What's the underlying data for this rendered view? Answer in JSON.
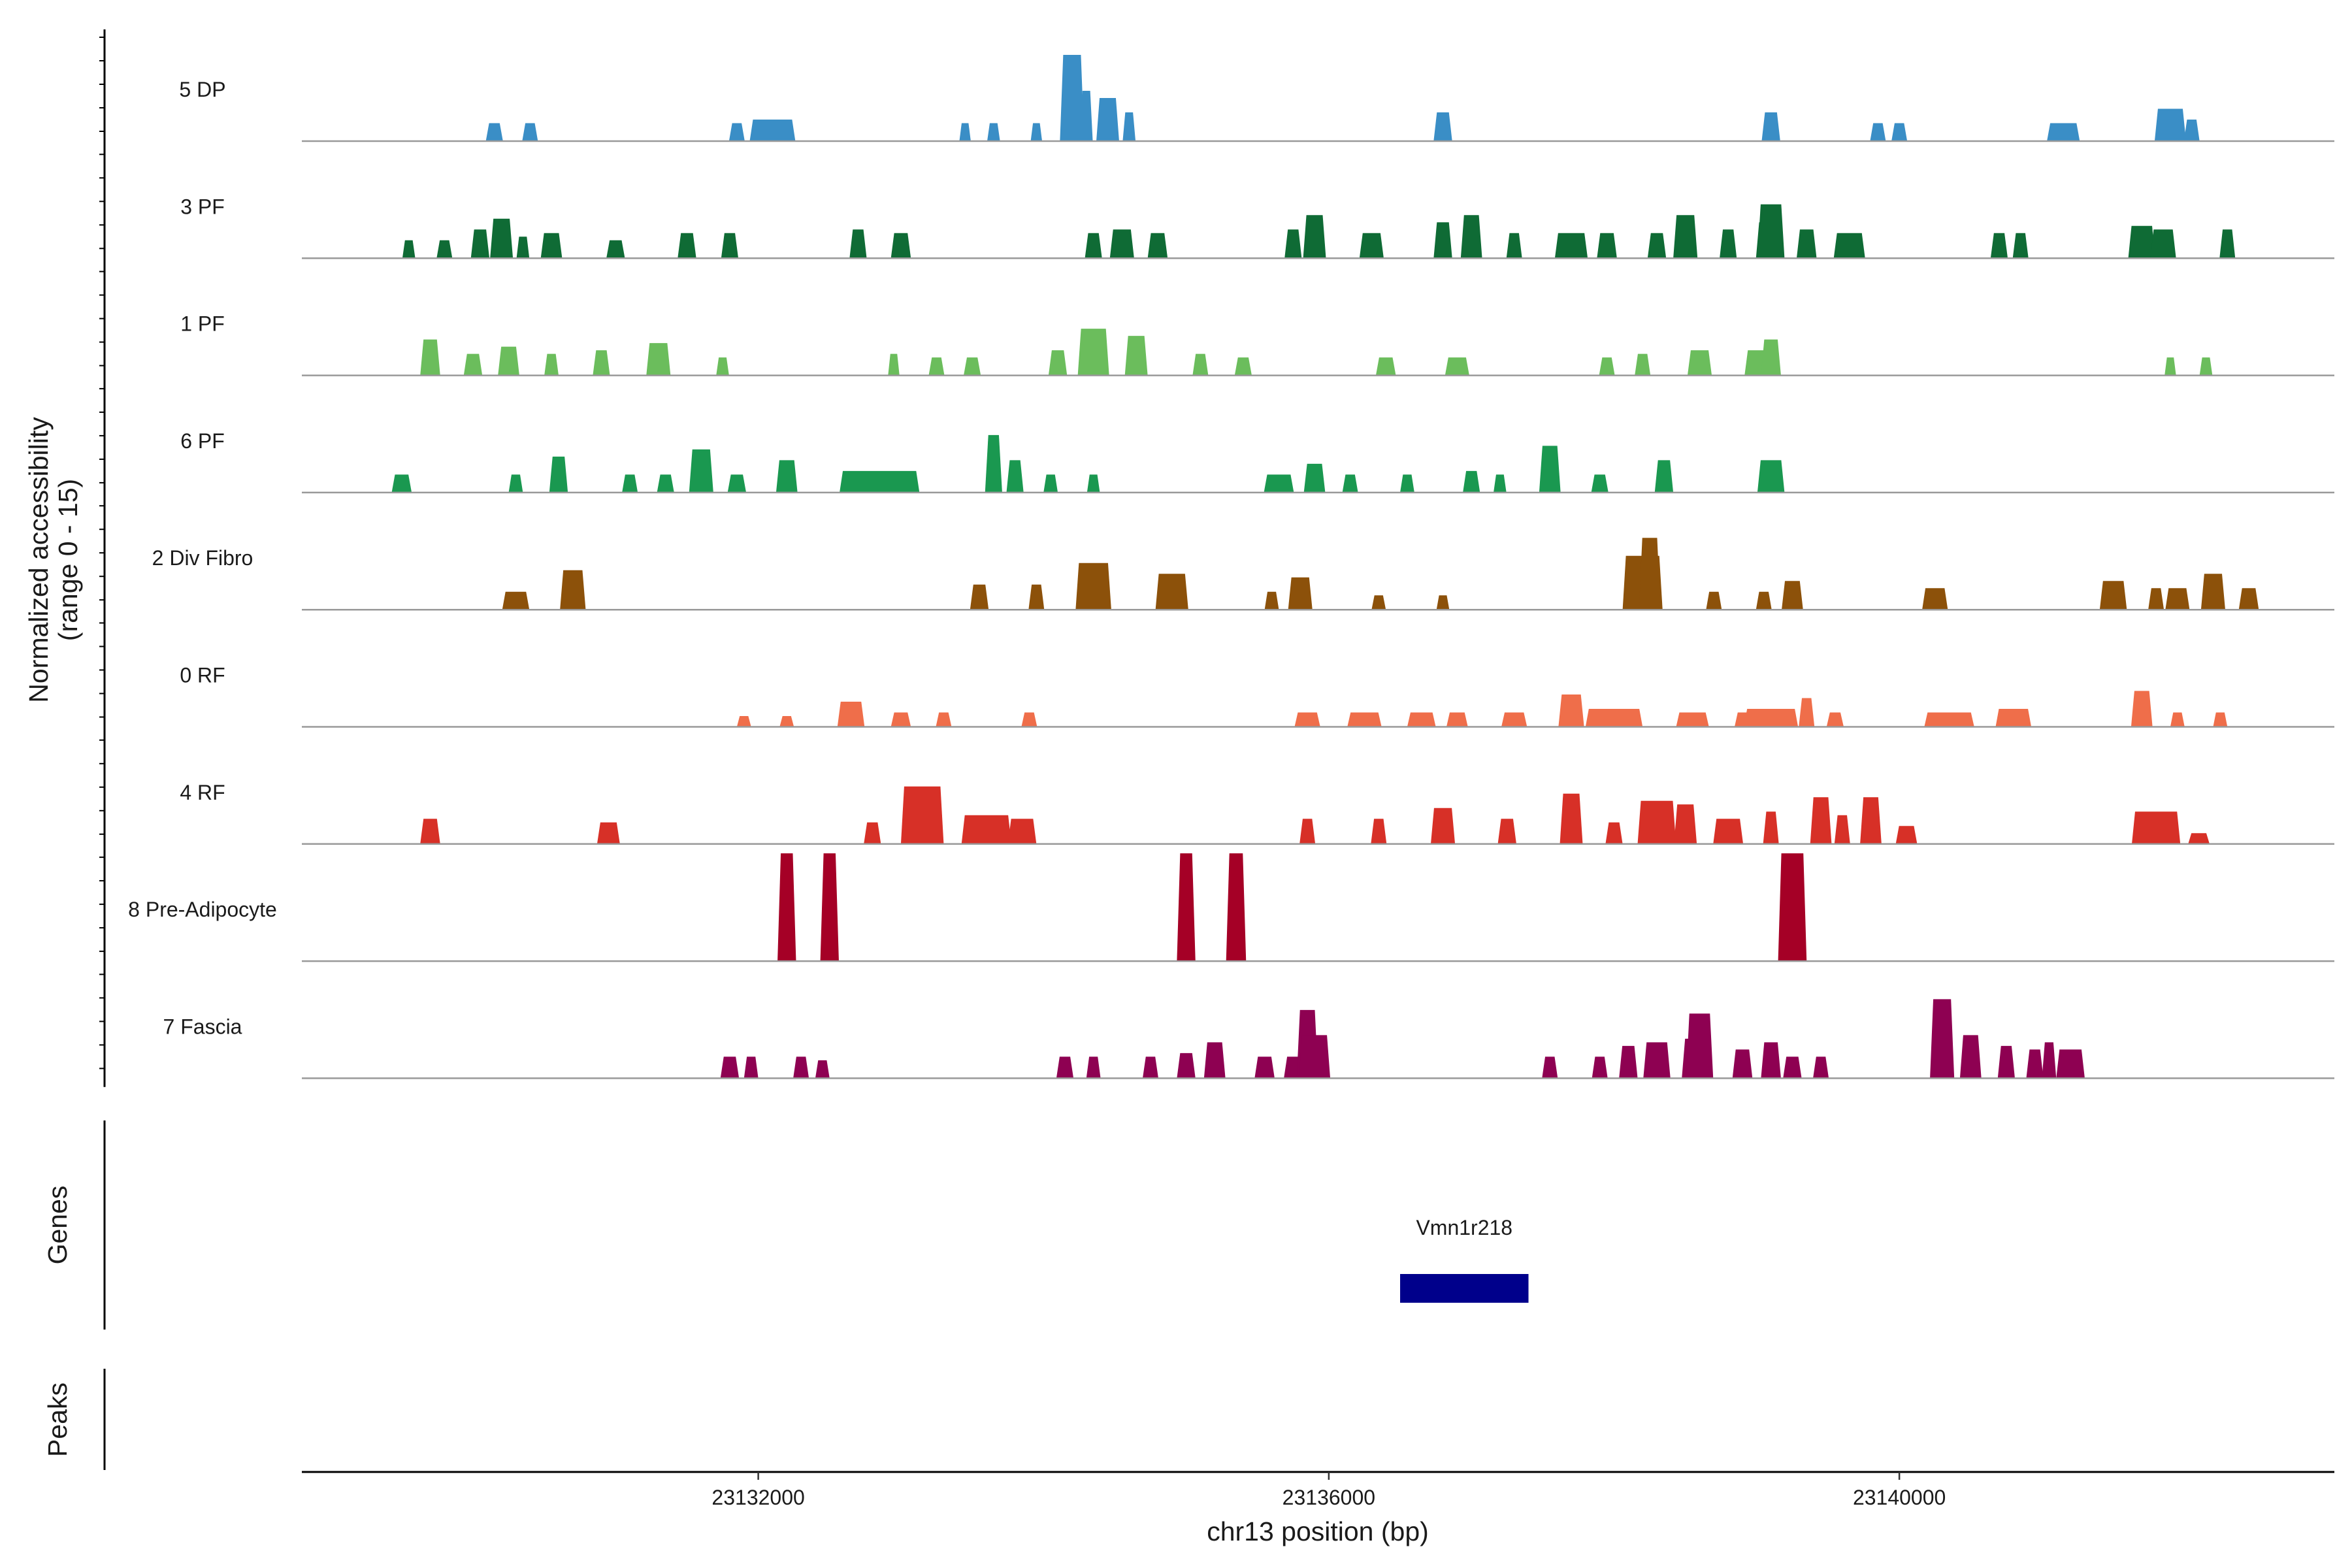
{
  "chart_data": {
    "type": "area",
    "title": "",
    "ylabel_line1": "Normalized accessibility",
    "ylabel_line2": "(range 0 - 15)",
    "ylim": [
      0,
      15
    ],
    "xlabel": "chr13 position (bp)",
    "xlim": [
      23128800,
      23143050
    ],
    "xticks": [
      23132000,
      23136000,
      23140000
    ],
    "xtick_labels": [
      "23132000",
      "23136000",
      "23140000"
    ],
    "tracks": [
      {
        "name": "5 DP",
        "color": "#3a8ec6",
        "peaks": [
          [
            23130150,
            120,
            2.5
          ],
          [
            23130400,
            110,
            2.5
          ],
          [
            23131850,
            110,
            2.5
          ],
          [
            23132100,
            320,
            3.0
          ],
          [
            23133450,
            80,
            2.5
          ],
          [
            23133650,
            90,
            2.5
          ],
          [
            23133950,
            80,
            2.5
          ],
          [
            23134200,
            170,
            12
          ],
          [
            23134300,
            90,
            7
          ],
          [
            23134450,
            160,
            6
          ],
          [
            23134600,
            90,
            4
          ],
          [
            23136800,
            130,
            4
          ],
          [
            23139100,
            130,
            4
          ],
          [
            23139850,
            110,
            2.5
          ],
          [
            23140000,
            110,
            2.5
          ],
          [
            23141150,
            230,
            2.5
          ],
          [
            23141900,
            220,
            4.5
          ],
          [
            23142050,
            110,
            3
          ]
        ]
      },
      {
        "name": "3 PF",
        "color": "#0f6b35",
        "peaks": [
          [
            23129550,
            90,
            2.5
          ],
          [
            23129800,
            110,
            2.5
          ],
          [
            23130050,
            130,
            4
          ],
          [
            23130200,
            160,
            5.5
          ],
          [
            23130350,
            90,
            3
          ],
          [
            23130550,
            150,
            3.5
          ],
          [
            23131000,
            130,
            2.5
          ],
          [
            23131500,
            130,
            3.5
          ],
          [
            23131800,
            120,
            3.5
          ],
          [
            23132700,
            120,
            4
          ],
          [
            23133000,
            140,
            3.5
          ],
          [
            23134350,
            120,
            3.5
          ],
          [
            23134550,
            170,
            4
          ],
          [
            23134800,
            140,
            3.5
          ],
          [
            23135750,
            120,
            4
          ],
          [
            23135900,
            160,
            6
          ],
          [
            23136300,
            170,
            3.5
          ],
          [
            23136800,
            130,
            5
          ],
          [
            23137000,
            150,
            6
          ],
          [
            23137300,
            110,
            3.5
          ],
          [
            23137700,
            230,
            3.5
          ],
          [
            23137950,
            140,
            3.5
          ],
          [
            23138300,
            130,
            3.5
          ],
          [
            23138500,
            170,
            6
          ],
          [
            23138800,
            120,
            4
          ],
          [
            23139050,
            110,
            5
          ],
          [
            23139100,
            190,
            7.5
          ],
          [
            23139350,
            140,
            4
          ],
          [
            23139650,
            220,
            3.5
          ],
          [
            23140700,
            120,
            3.5
          ],
          [
            23140850,
            110,
            3.5
          ],
          [
            23141700,
            190,
            4.5
          ],
          [
            23141850,
            180,
            4
          ],
          [
            23142300,
            110,
            4
          ]
        ]
      },
      {
        "name": "1 PF",
        "color": "#6bbd5c",
        "peaks": [
          [
            23129700,
            140,
            5
          ],
          [
            23130000,
            130,
            3
          ],
          [
            23130250,
            150,
            4
          ],
          [
            23130550,
            100,
            3
          ],
          [
            23130900,
            120,
            3.5
          ],
          [
            23131300,
            170,
            4.5
          ],
          [
            23131750,
            90,
            2.5
          ],
          [
            23132950,
            80,
            3
          ],
          [
            23133250,
            110,
            2.5
          ],
          [
            23133500,
            120,
            2.5
          ],
          [
            23134100,
            130,
            3.5
          ],
          [
            23134350,
            220,
            6.5
          ],
          [
            23134650,
            160,
            5.5
          ],
          [
            23135100,
            110,
            3
          ],
          [
            23135400,
            120,
            2.5
          ],
          [
            23136400,
            140,
            2.5
          ],
          [
            23136900,
            170,
            2.5
          ],
          [
            23137950,
            110,
            2.5
          ],
          [
            23138200,
            110,
            3
          ],
          [
            23138600,
            170,
            3.5
          ],
          [
            23139000,
            170,
            3.5
          ],
          [
            23139100,
            140,
            5
          ],
          [
            23141900,
            80,
            2.5
          ],
          [
            23142150,
            90,
            2.5
          ]
        ]
      },
      {
        "name": "6 PF",
        "color": "#1a9850",
        "peaks": [
          [
            23129500,
            140,
            2.5
          ],
          [
            23130300,
            100,
            2.5
          ],
          [
            23130600,
            130,
            5
          ],
          [
            23131100,
            110,
            2.5
          ],
          [
            23131350,
            120,
            2.5
          ],
          [
            23131600,
            170,
            6
          ],
          [
            23131850,
            130,
            2.5
          ],
          [
            23132200,
            150,
            4.5
          ],
          [
            23132850,
            560,
            3
          ],
          [
            23133650,
            120,
            8
          ],
          [
            23133800,
            120,
            4.5
          ],
          [
            23134050,
            100,
            2.5
          ],
          [
            23134350,
            90,
            2.5
          ],
          [
            23135650,
            210,
            2.5
          ],
          [
            23135900,
            150,
            4
          ],
          [
            23136150,
            110,
            2.5
          ],
          [
            23136550,
            100,
            2.5
          ],
          [
            23137000,
            120,
            3
          ],
          [
            23137200,
            90,
            2.5
          ],
          [
            23137550,
            150,
            6.5
          ],
          [
            23137900,
            120,
            2.5
          ],
          [
            23138350,
            130,
            4.5
          ],
          [
            23139100,
            190,
            4.5
          ]
        ]
      },
      {
        "name": "2 Div Fibro",
        "color": "#8c510a",
        "peaks": [
          [
            23130300,
            190,
            2.5
          ],
          [
            23130700,
            180,
            5.5
          ],
          [
            23133550,
            130,
            3.5
          ],
          [
            23133950,
            110,
            3.5
          ],
          [
            23134350,
            250,
            6.5
          ],
          [
            23134900,
            230,
            5
          ],
          [
            23135600,
            100,
            2.5
          ],
          [
            23135800,
            170,
            4.5
          ],
          [
            23136350,
            100,
            2
          ],
          [
            23136800,
            90,
            2
          ],
          [
            23138200,
            280,
            7.5
          ],
          [
            23138250,
            150,
            10
          ],
          [
            23138700,
            110,
            2.5
          ],
          [
            23139050,
            110,
            2.5
          ],
          [
            23139250,
            150,
            4
          ],
          [
            23140250,
            180,
            3
          ],
          [
            23141500,
            190,
            4
          ],
          [
            23141800,
            110,
            3
          ],
          [
            23141950,
            170,
            3
          ],
          [
            23142200,
            170,
            5
          ],
          [
            23142450,
            140,
            3
          ]
        ]
      },
      {
        "name": "0 RF",
        "color": "#ef6e4a",
        "peaks": [
          [
            23131900,
            100,
            1.5
          ],
          [
            23132200,
            100,
            1.5
          ],
          [
            23132650,
            190,
            3.5
          ],
          [
            23133000,
            140,
            2
          ],
          [
            23133300,
            110,
            2
          ],
          [
            23133900,
            110,
            2
          ],
          [
            23135850,
            180,
            2
          ],
          [
            23136250,
            240,
            2
          ],
          [
            23136650,
            200,
            2
          ],
          [
            23136900,
            150,
            2
          ],
          [
            23137300,
            180,
            2
          ],
          [
            23137700,
            180,
            4.5
          ],
          [
            23138000,
            400,
            2.5
          ],
          [
            23138550,
            230,
            2
          ],
          [
            23138900,
            110,
            2
          ],
          [
            23139100,
            380,
            2.5
          ],
          [
            23139350,
            110,
            4
          ],
          [
            23139550,
            120,
            2
          ],
          [
            23140350,
            350,
            2
          ],
          [
            23140800,
            250,
            2.5
          ],
          [
            23141700,
            150,
            5
          ],
          [
            23141950,
            100,
            2
          ],
          [
            23142250,
            100,
            2
          ]
        ]
      },
      {
        "name": "4 RF",
        "color": "#d73027",
        "peaks": [
          [
            23129700,
            140,
            3.5
          ],
          [
            23130950,
            160,
            3
          ],
          [
            23132800,
            120,
            3
          ],
          [
            23133150,
            300,
            8
          ],
          [
            23133600,
            350,
            4
          ],
          [
            23133850,
            200,
            3.5
          ],
          [
            23135850,
            110,
            3.5
          ],
          [
            23136350,
            110,
            3.5
          ],
          [
            23136800,
            170,
            5
          ],
          [
            23137250,
            130,
            3.5
          ],
          [
            23137700,
            160,
            7
          ],
          [
            23138000,
            120,
            3
          ],
          [
            23138300,
            270,
            6
          ],
          [
            23138500,
            160,
            5.5
          ],
          [
            23138800,
            210,
            3.5
          ],
          [
            23139100,
            110,
            4.5
          ],
          [
            23139450,
            150,
            6.5
          ],
          [
            23139600,
            110,
            4
          ],
          [
            23139800,
            150,
            6.5
          ],
          [
            23140050,
            150,
            2.5
          ],
          [
            23141800,
            340,
            4.5
          ],
          [
            23142100,
            150,
            1.5
          ]
        ]
      },
      {
        "name": "8 Pre-Adipocyte",
        "color": "#a50026",
        "peaks": [
          [
            23132200,
            130,
            15
          ],
          [
            23132500,
            130,
            15
          ],
          [
            23135000,
            130,
            15
          ],
          [
            23135350,
            140,
            15
          ],
          [
            23139250,
            200,
            15
          ]
        ]
      },
      {
        "name": "7 Fascia",
        "color": "#8e0152",
        "peaks": [
          [
            23131800,
            130,
            3
          ],
          [
            23131950,
            100,
            3
          ],
          [
            23132300,
            110,
            3
          ],
          [
            23132450,
            100,
            2.5
          ],
          [
            23134150,
            120,
            3
          ],
          [
            23134350,
            100,
            3
          ],
          [
            23134750,
            110,
            3
          ],
          [
            23135000,
            130,
            3.5
          ],
          [
            23135200,
            150,
            5
          ],
          [
            23135550,
            140,
            3
          ],
          [
            23135750,
            130,
            3
          ],
          [
            23135850,
            150,
            9.5
          ],
          [
            23135900,
            220,
            6
          ],
          [
            23137550,
            110,
            3
          ],
          [
            23137900,
            110,
            3
          ],
          [
            23138100,
            130,
            4.5
          ],
          [
            23138300,
            190,
            5
          ],
          [
            23138550,
            150,
            5.5
          ],
          [
            23138600,
            190,
            9
          ],
          [
            23138900,
            140,
            4
          ],
          [
            23139100,
            140,
            5
          ],
          [
            23139250,
            130,
            3
          ],
          [
            23139450,
            110,
            3
          ],
          [
            23140300,
            170,
            11
          ],
          [
            23140500,
            150,
            6
          ],
          [
            23140750,
            120,
            4.5
          ],
          [
            23140950,
            120,
            4
          ],
          [
            23141050,
            100,
            5
          ],
          [
            23141200,
            200,
            4
          ]
        ]
      }
    ],
    "genes_label": "Genes",
    "gene": {
      "name": "Vmn1r218",
      "start": 23136500,
      "end": 23137400
    },
    "peaks_label": "Peaks"
  }
}
